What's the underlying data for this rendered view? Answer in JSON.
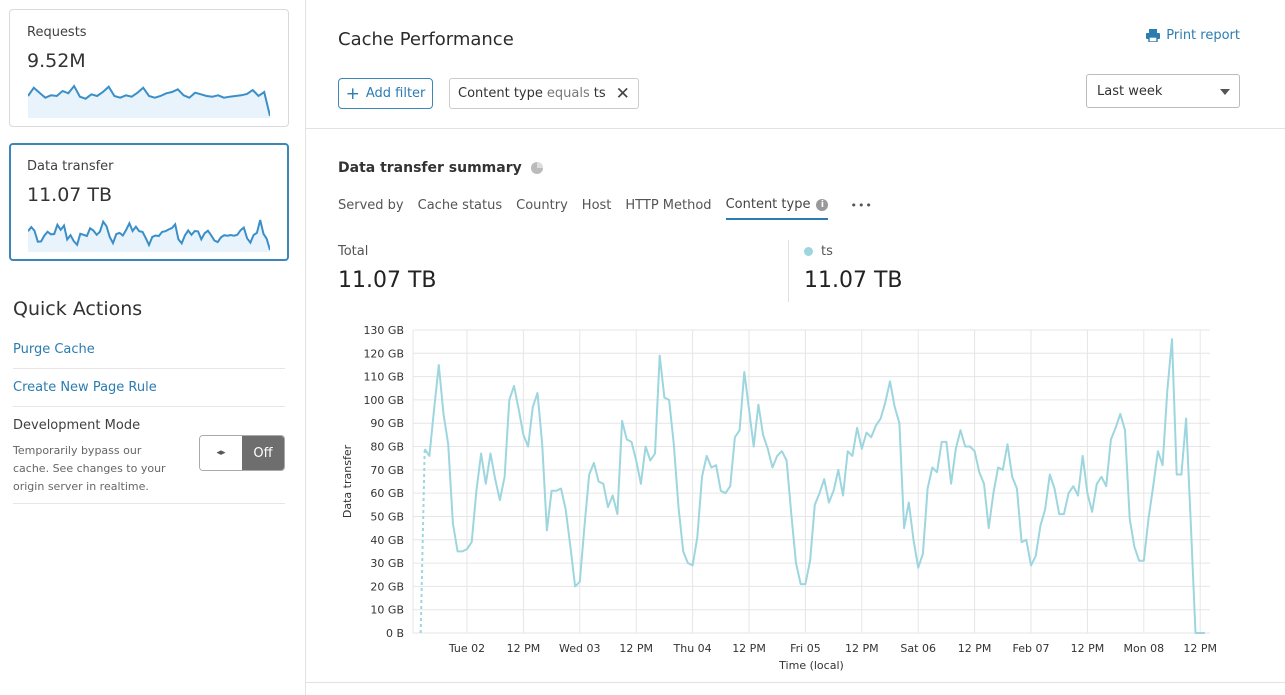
{
  "sidebar": {
    "cards": [
      {
        "label": "Requests",
        "value": "9.52M",
        "sparkline": [
          60,
          85,
          70,
          55,
          62,
          60,
          75,
          68,
          90,
          58,
          52,
          65,
          60,
          72,
          88,
          60,
          55,
          62,
          58,
          70,
          85,
          60,
          55,
          60,
          68,
          72,
          80,
          62,
          55,
          70,
          65,
          60,
          58,
          62,
          55,
          58,
          60,
          62,
          66,
          78,
          60,
          72,
          0
        ]
      },
      {
        "label": "Data transfer",
        "value": "11.07 TB",
        "sparkline": [
          79,
          96,
          81,
          35,
          36,
          61,
          77,
          66,
          67,
          106,
          85,
          103,
          44,
          62,
          37,
          22,
          68,
          64,
          59,
          91,
          82,
          64,
          77,
          119,
          100,
          54,
          29,
          67,
          72,
          61,
          84,
          112,
          80,
          98,
          79,
          76,
          51,
          21,
          55,
          61,
          59,
          76,
          79,
          86,
          92,
          108,
          45,
          28,
          62,
          82,
          64,
          80,
          78,
          45,
          70,
          81,
          62,
          40,
          33,
          53,
          62,
          60,
          63,
          60,
          64,
          83,
          94,
          49,
          31,
          63,
          72,
          126,
          68,
          47,
          0
        ]
      }
    ],
    "quick_actions": {
      "title": "Quick Actions",
      "links": [
        "Purge Cache",
        "Create New Page Rule"
      ],
      "dev_mode": {
        "label": "Development Mode",
        "description": "Temporarily bypass our cache. See changes to your origin server in realtime.",
        "state": "Off"
      }
    }
  },
  "header": {
    "title": "Cache Performance",
    "print_label": "Print report",
    "add_filter_label": "Add filter",
    "filter": {
      "field": "Content type",
      "operator": "equals",
      "value": "ts"
    },
    "time_range": "Last week"
  },
  "summary": {
    "title": "Data transfer summary",
    "tabs": [
      "Served by",
      "Cache status",
      "Country",
      "Host",
      "HTTP Method",
      "Content type"
    ],
    "active_tab": "Content type",
    "more_label": "•••",
    "total_label": "Total",
    "total_value": "11.07 TB",
    "series_label": "ts",
    "series_value": "11.07 TB"
  },
  "colors": {
    "accent": "#2c7cb0",
    "series": "#9dd6de",
    "sparkline": "#3a8fc8"
  },
  "chart_data": {
    "type": "line",
    "xlabel": "Time (local)",
    "ylabel": "Data transfer",
    "x_start": "Mon 01 15:00",
    "x_step": "1 hour",
    "x_ticks": [
      "Tue 02",
      "12 PM",
      "Wed 03",
      "12 PM",
      "Thu 04",
      "12 PM",
      "Fri 05",
      "12 PM",
      "Sat 06",
      "12 PM",
      "Feb 07",
      "12 PM",
      "Mon 08",
      "12 PM"
    ],
    "y_ticks": [
      "0 B",
      "10 GB",
      "20 GB",
      "30 GB",
      "40 GB",
      "50 GB",
      "60 GB",
      "70 GB",
      "80 GB",
      "90 GB",
      "100 GB",
      "110 GB",
      "120 GB",
      "130 GB"
    ],
    "ylim": [
      0,
      130
    ],
    "grid": true,
    "series": [
      {
        "name": "ts",
        "unit": "GB",
        "values": [
          79,
          76,
          96,
          115,
          94,
          81,
          47,
          35,
          35,
          36,
          39,
          61,
          77,
          64,
          77,
          66,
          57,
          67,
          100,
          106,
          96,
          85,
          80,
          97,
          103,
          81,
          44,
          61,
          61,
          62,
          53,
          37,
          20,
          22,
          46,
          68,
          73,
          65,
          64,
          54,
          59,
          51,
          91,
          83,
          82,
          74,
          64,
          80,
          74,
          77,
          119,
          101,
          100,
          81,
          54,
          35,
          30,
          29,
          41,
          67,
          76,
          71,
          72,
          61,
          60,
          63,
          84,
          87,
          112,
          96,
          80,
          98,
          85,
          79,
          71,
          76,
          78,
          74,
          51,
          30,
          21,
          21,
          31,
          55,
          60,
          66,
          56,
          61,
          70,
          59,
          78,
          76,
          88,
          79,
          86,
          84,
          89,
          92,
          99,
          108,
          97,
          90,
          45,
          56,
          40,
          28,
          34,
          62,
          71,
          69,
          82,
          82,
          64,
          79,
          87,
          80,
          80,
          78,
          69,
          64,
          45,
          60,
          71,
          70,
          81,
          67,
          62,
          39,
          40,
          29,
          33,
          46,
          53,
          68,
          62,
          51,
          51,
          60,
          63,
          59,
          76,
          60,
          52,
          64,
          67,
          63,
          83,
          88,
          94,
          87,
          49,
          37,
          31,
          31,
          49,
          63,
          78,
          72,
          104,
          126,
          68,
          68,
          92,
          47,
          0,
          0,
          0
        ]
      }
    ]
  }
}
